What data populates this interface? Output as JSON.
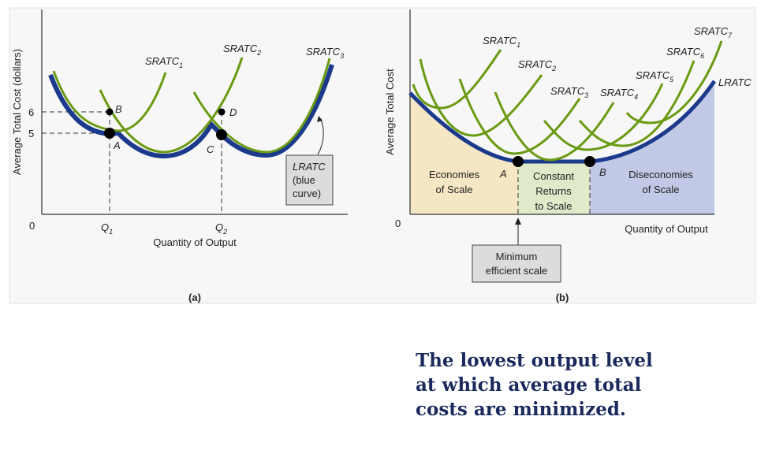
{
  "panel_a": {
    "caption": "(a)",
    "y_axis_label": "Average Total Cost (dollars)",
    "x_axis_label": "Quantity of Output",
    "origin": "0",
    "y_ticks": [
      "6",
      "5"
    ],
    "x_ticks": [
      {
        "base": "Q",
        "sub": "1"
      },
      {
        "base": "Q",
        "sub": "2"
      }
    ],
    "curves": [
      {
        "base": "SRATC",
        "sub": "1"
      },
      {
        "base": "SRATC",
        "sub": "2"
      },
      {
        "base": "SRATC",
        "sub": "3"
      }
    ],
    "points": [
      "A",
      "B",
      "C",
      "D"
    ],
    "lratc_box": [
      "LRATC",
      "(blue",
      "curve)"
    ]
  },
  "panel_b": {
    "caption": "(b)",
    "y_axis_label": "Average Total Cost",
    "x_axis_label": "Quantity of Output",
    "origin": "0",
    "curves": [
      {
        "base": "SRATC",
        "sub": "1"
      },
      {
        "base": "SRATC",
        "sub": "2"
      },
      {
        "base": "SRATC",
        "sub": "3"
      },
      {
        "base": "SRATC",
        "sub": "4"
      },
      {
        "base": "SRATC",
        "sub": "5"
      },
      {
        "base": "SRATC",
        "sub": "6"
      },
      {
        "base": "SRATC",
        "sub": "7"
      }
    ],
    "lratc_label": "LRATC",
    "points": [
      "A",
      "B"
    ],
    "regions": {
      "economies": [
        "Economies",
        "of Scale"
      ],
      "constant": [
        "Constant",
        "Returns",
        "to Scale"
      ],
      "diseconomies": [
        "Diseconomies",
        "of Scale"
      ]
    },
    "mes_box": [
      "Minimum",
      "efficient scale"
    ]
  },
  "caption_text": [
    "The lowest output level",
    "at which average total",
    "costs are minimized."
  ],
  "colors": {
    "sratc": "#6a9a12",
    "lratc": "#1b3a8c",
    "economies": "#f6e7c4",
    "constant": "#e0e9c9",
    "diseconomies": "#c1c9e7",
    "caption": "#1b2a5c"
  }
}
